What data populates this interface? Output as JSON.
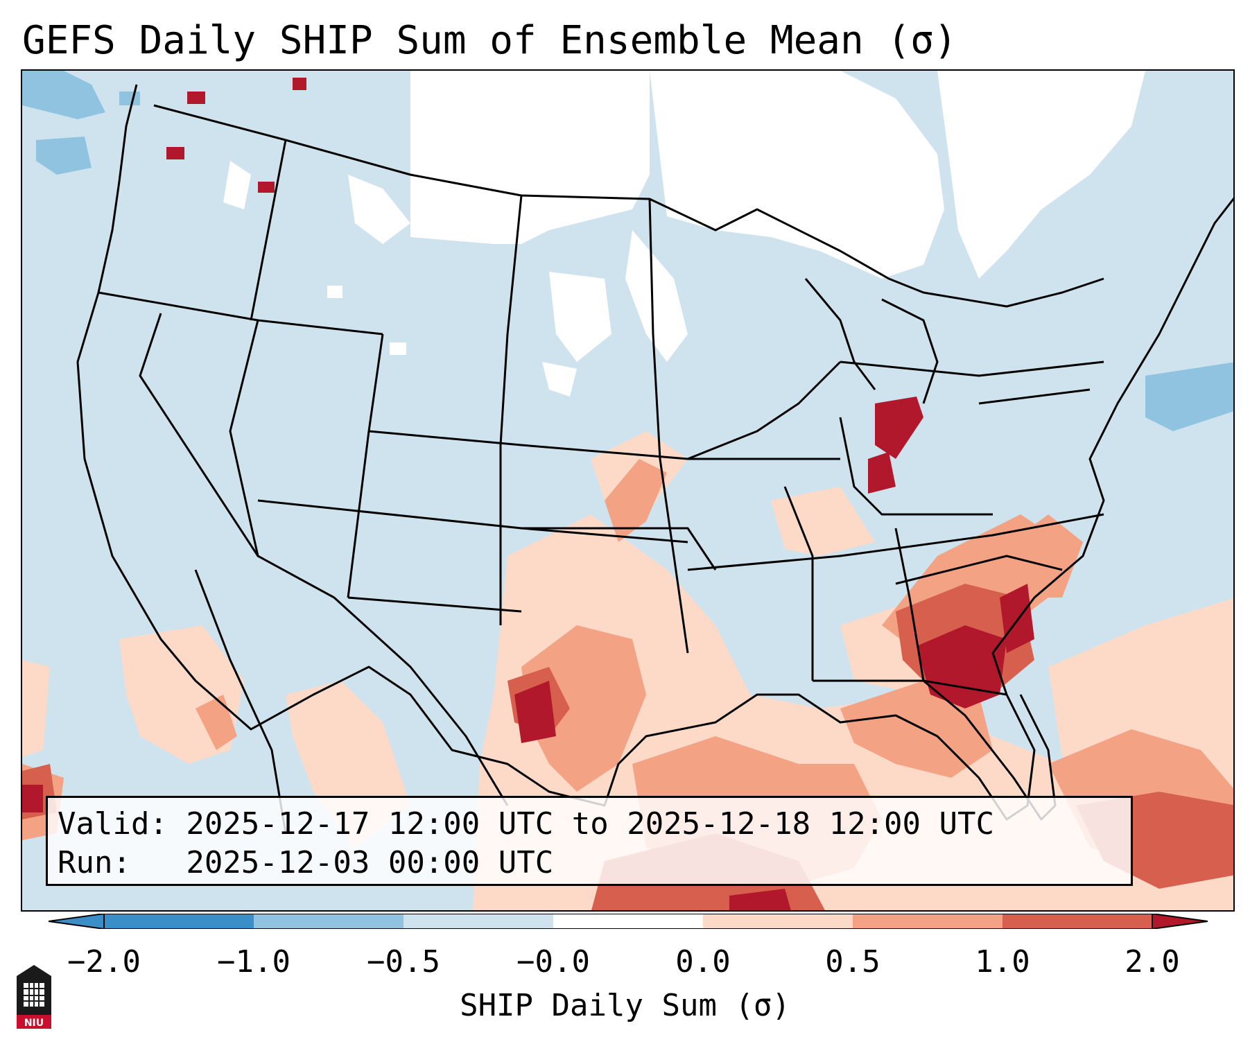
{
  "title": "GEFS Daily SHIP Sum of Ensemble Mean (σ)",
  "info": {
    "valid_line": "Valid: 2025-12-17 12:00 UTC to 2025-12-18 12:00 UTC",
    "run_line": "Run:   2025-12-03 00:00 UTC"
  },
  "colorbar": {
    "label": "SHIP Daily Sum (σ)",
    "ticks": [
      "−2.0",
      "−1.0",
      "−0.5",
      "−0.0",
      "0.0",
      "0.5",
      "1.0",
      "2.0"
    ],
    "colors": [
      "#3b8fc9",
      "#8fc3e0",
      "#cfe3ef",
      "#ffffff",
      "#fdd9c7",
      "#f3a283",
      "#d6604d",
      "#b2182b"
    ]
  },
  "map": {
    "background_color": "#cfe3ef",
    "no_signal_color": "#ffffff",
    "region": "Contiguous United States"
  },
  "logo": {
    "text": "NIU"
  }
}
